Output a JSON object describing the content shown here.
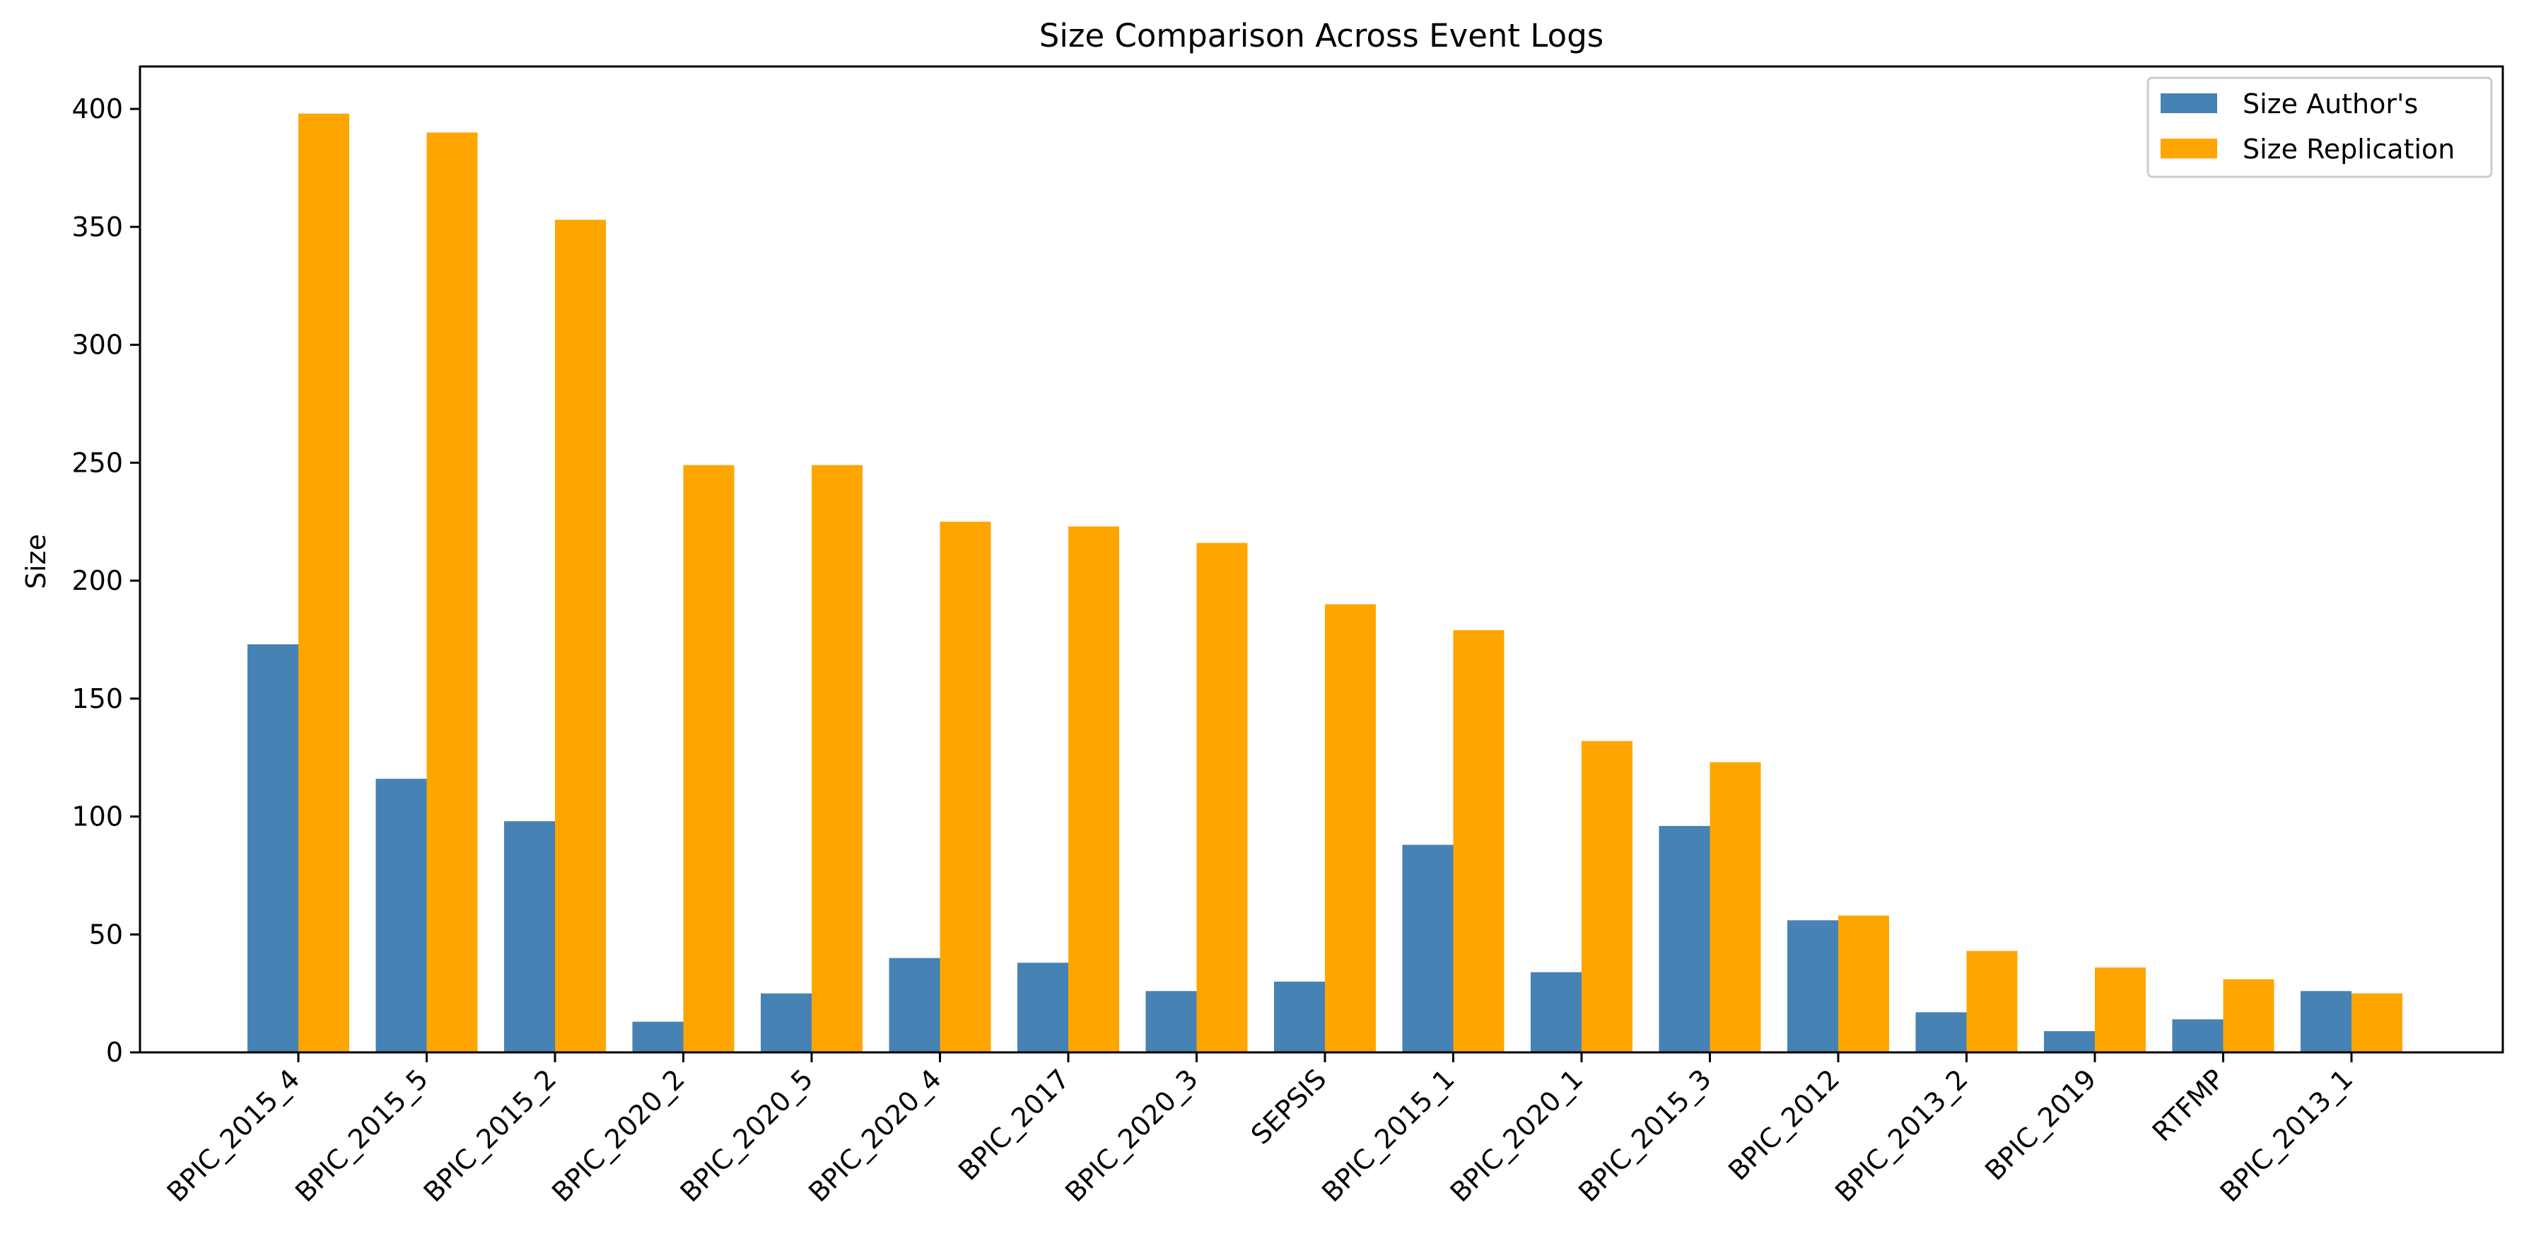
{
  "chart_data": {
    "type": "bar",
    "title": "Size Comparison Across Event Logs",
    "xlabel": "",
    "ylabel": "Size",
    "ylim": [
      0,
      418
    ],
    "yticks": [
      0,
      50,
      100,
      150,
      200,
      250,
      300,
      350,
      400
    ],
    "grid": false,
    "legend_position": "top-right",
    "categories": [
      "BPIC_2015_4",
      "BPIC_2015_5",
      "BPIC_2015_2",
      "BPIC_2020_2",
      "BPIC_2020_5",
      "BPIC_2020_4",
      "BPIC_2017",
      "BPIC_2020_3",
      "SEPSIS",
      "BPIC_2015_1",
      "BPIC_2020_1",
      "BPIC_2015_3",
      "BPIC_2012",
      "BPIC_2013_2",
      "BPIC_2019",
      "RTFMP",
      "BPIC_2013_1"
    ],
    "series": [
      {
        "name": "Size Author's",
        "color": "#4682b4",
        "values": [
          173,
          116,
          98,
          13,
          25,
          40,
          38,
          26,
          30,
          88,
          34,
          96,
          56,
          17,
          9,
          14,
          26
        ]
      },
      {
        "name": "Size Replication",
        "color": "#ffa500",
        "values": [
          398,
          390,
          353,
          249,
          249,
          225,
          223,
          216,
          190,
          179,
          132,
          123,
          58,
          43,
          36,
          31,
          25
        ]
      }
    ]
  }
}
